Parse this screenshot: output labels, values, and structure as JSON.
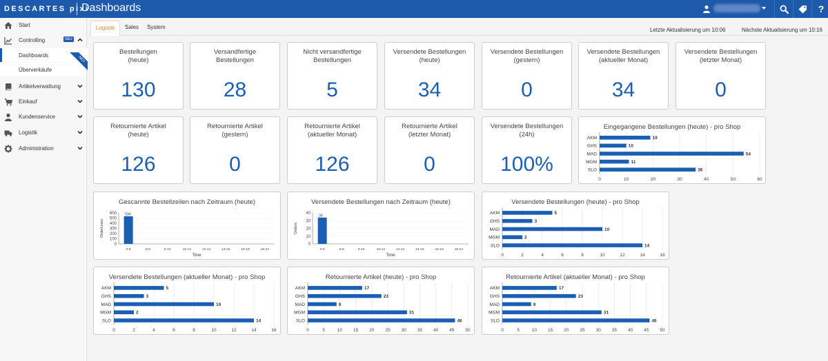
{
  "header": {
    "brand": "DESCARTES pixi",
    "title": "Dashboards",
    "icons": [
      "user-icon",
      "search-icon",
      "tag-icon"
    ],
    "help_label": "?"
  },
  "sidebar": {
    "items": [
      {
        "label": "Start",
        "icon": "home-icon"
      },
      {
        "label": "Controlling",
        "icon": "chart-icon",
        "badge": "NEU"
      },
      {
        "label": "Dashboards",
        "ribbon": "NEU"
      },
      {
        "label": "Überverkäufe"
      },
      {
        "label": "Artikelverwaltung",
        "icon": "book-icon"
      },
      {
        "label": "Einkauf",
        "icon": "cart-icon"
      },
      {
        "label": "Kundenservice",
        "icon": "person-icon"
      },
      {
        "label": "Logistik",
        "icon": "truck-icon"
      },
      {
        "label": "Administration",
        "icon": "gear-icon"
      }
    ]
  },
  "tabs": [
    {
      "label": "Logistik",
      "active": true
    },
    {
      "label": "Sales"
    },
    {
      "label": "System"
    }
  ],
  "status": {
    "last_update": "Letzte Aktualisierung um 10:06",
    "next_update": "Nächste Aktualisierung um 10:16"
  },
  "kpis": [
    {
      "title": "Bestellungen\n(heute)",
      "value": "130"
    },
    {
      "title": "Versandfertige\nBestellungen",
      "value": "28"
    },
    {
      "title": "Nicht versandfertige\nBestellungen",
      "value": "5"
    },
    {
      "title": "Versendete Bestellungen\n(heute)",
      "value": "34"
    },
    {
      "title": "Versendete Bestellungen\n(gestern)",
      "value": "0"
    },
    {
      "title": "Versendete Bestellungen\n(aktueller Monat)",
      "value": "34"
    },
    {
      "title": "Versendete Bestellungen\n(letzter Monat)",
      "value": "0"
    },
    {
      "title": "Retournierte Artikel\n(heute)",
      "value": "126"
    },
    {
      "title": "Retournierte Artikel\n(gestern)",
      "value": "0"
    },
    {
      "title": "Retournierte Artikel\n(aktueller Monat)",
      "value": "126"
    },
    {
      "title": "Retournierte Artikel\n(letzter Monat)",
      "value": "0"
    },
    {
      "title": "Versendete Bestellungen (24h)",
      "value": "100%"
    }
  ],
  "colors": {
    "accent": "#1d5aab",
    "bar": "#1a5fb4",
    "active_tab": "#e8842c"
  },
  "chart_data": [
    {
      "type": "bar",
      "orientation": "horizontal",
      "title": "Eingegangene Bestellungen (heute) - pro Shop",
      "categories": [
        "AKM",
        "GHS",
        "MAD",
        "MGM",
        "SLO"
      ],
      "values": [
        19,
        10,
        54,
        11,
        36
      ],
      "xlim": [
        0,
        60
      ],
      "xticks": [
        0,
        10,
        20,
        30,
        40,
        50,
        60
      ]
    },
    {
      "type": "bar",
      "title": "Gescannte Bestellzeilen nach Zeitraum (heute)",
      "categories": [
        "0-6",
        "6-8",
        "8-10",
        "10-12",
        "12-14",
        "14-16",
        "16-18",
        "18-24"
      ],
      "values": [
        534,
        0,
        0,
        0,
        0,
        0,
        0,
        0
      ],
      "xlabel": "Time",
      "ylabel": "OrderLines",
      "ylim": [
        0,
        600
      ],
      "yticks": [
        0,
        100,
        200,
        300,
        400,
        500,
        600
      ]
    },
    {
      "type": "bar",
      "title": "Versendete Bestellungen nach Zeitraum (heute)",
      "categories": [
        "0-6",
        "6-8",
        "8-10",
        "10-12",
        "12-14",
        "14-16",
        "16-18",
        "18-24"
      ],
      "values": [
        34,
        0,
        0,
        0,
        0,
        0,
        0,
        0
      ],
      "xlabel": "Time",
      "ylabel": "Orders",
      "ylim": [
        0,
        40
      ],
      "yticks": [
        0,
        10,
        20,
        30,
        40
      ]
    },
    {
      "type": "bar",
      "orientation": "horizontal",
      "title": "Versendete Bestellungen (heute) - pro Shop",
      "categories": [
        "AKM",
        "GHS",
        "MAD",
        "MGM",
        "SLO"
      ],
      "values": [
        5,
        3,
        10,
        2,
        14
      ],
      "xlim": [
        0,
        16
      ],
      "xticks": [
        0,
        2,
        4,
        6,
        8,
        10,
        12,
        14,
        16
      ]
    },
    {
      "type": "bar",
      "orientation": "horizontal",
      "title": "Versendete Bestellungen (aktueller Monat) - pro Shop",
      "categories": [
        "AKM",
        "GHS",
        "MAD",
        "MGM",
        "SLO"
      ],
      "values": [
        5,
        3,
        10,
        2,
        14
      ],
      "xlim": [
        0,
        16
      ],
      "xticks": [
        0,
        2,
        4,
        6,
        8,
        10,
        12,
        14,
        16
      ]
    },
    {
      "type": "bar",
      "orientation": "horizontal",
      "title": "Retournierte Artikel (heute) - pro Shop",
      "categories": [
        "AKM",
        "GHS",
        "MAD",
        "MGM",
        "SLO"
      ],
      "values": [
        17,
        23,
        9,
        31,
        46
      ],
      "xlim": [
        0,
        50
      ],
      "xticks": [
        0,
        5,
        10,
        15,
        20,
        25,
        30,
        35,
        40,
        45,
        50
      ]
    },
    {
      "type": "bar",
      "orientation": "horizontal",
      "title": "Retournierte Artikel (aktueller Monat) - pro Shop",
      "categories": [
        "AKM",
        "GHS",
        "MAD",
        "MGM",
        "SLO"
      ],
      "values": [
        17,
        23,
        9,
        31,
        46
      ],
      "xlim": [
        0,
        50
      ],
      "xticks": [
        0,
        5,
        10,
        15,
        20,
        25,
        30,
        35,
        40,
        45,
        50
      ]
    }
  ]
}
